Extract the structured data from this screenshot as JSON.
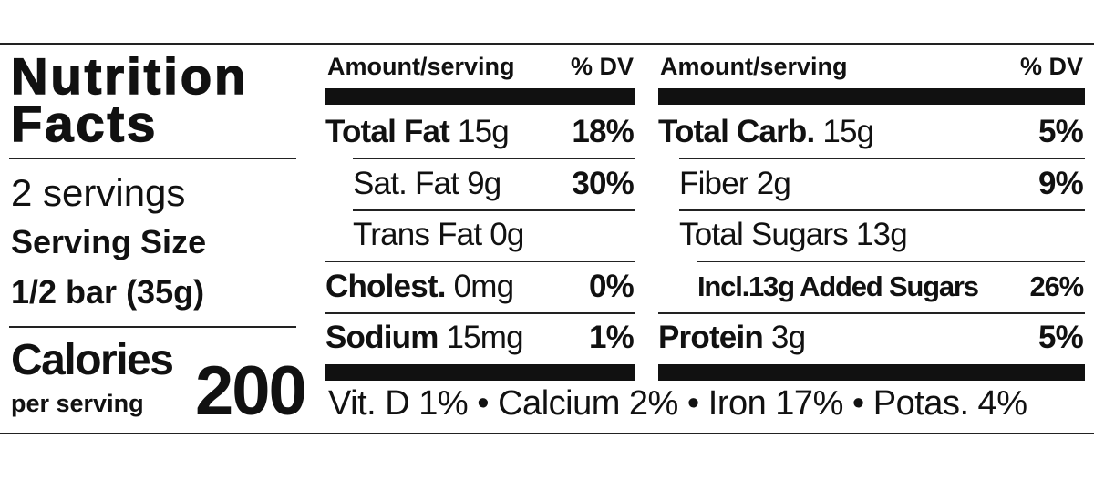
{
  "label": {
    "title": [
      "Nutrition",
      "Facts"
    ],
    "servings": "2 servings",
    "serving_size_label": "Serving Size",
    "serving_size": "1/2 bar (35g)",
    "calories_label": "Calories",
    "per_serving": "per serving",
    "calories": "200",
    "columns": [
      {
        "header": {
          "amount": "Amount/serving",
          "dv": "% DV"
        },
        "rows": [
          {
            "name": "Total Fat",
            "amount": "15g",
            "dv": "18%"
          },
          {
            "name": "Sat. Fat",
            "amount": "9g",
            "dv": "30%"
          },
          {
            "name": "Trans Fat",
            "amount": "0g"
          },
          {
            "name": "Cholest.",
            "amount": "0mg",
            "dv": "0%"
          },
          {
            "name": "Sodium",
            "amount": "15mg",
            "dv": "1%"
          }
        ]
      },
      {
        "header": {
          "amount": "Amount/serving",
          "dv": "% DV"
        },
        "rows": [
          {
            "name": "Total Carb.",
            "amount": "15g",
            "dv": "5%"
          },
          {
            "name": "Fiber",
            "amount": "2g",
            "dv": "9%"
          },
          {
            "name": "Total Sugars",
            "amount": "13g"
          },
          {
            "name": "Incl.13g Added Sugars",
            "dv": "26%"
          },
          {
            "name": "Protein",
            "amount": "3g",
            "dv": "5%"
          }
        ]
      }
    ],
    "footer": "Vit. D 1% • Calcium 2% • Iron 17% • Potas. 4%"
  }
}
